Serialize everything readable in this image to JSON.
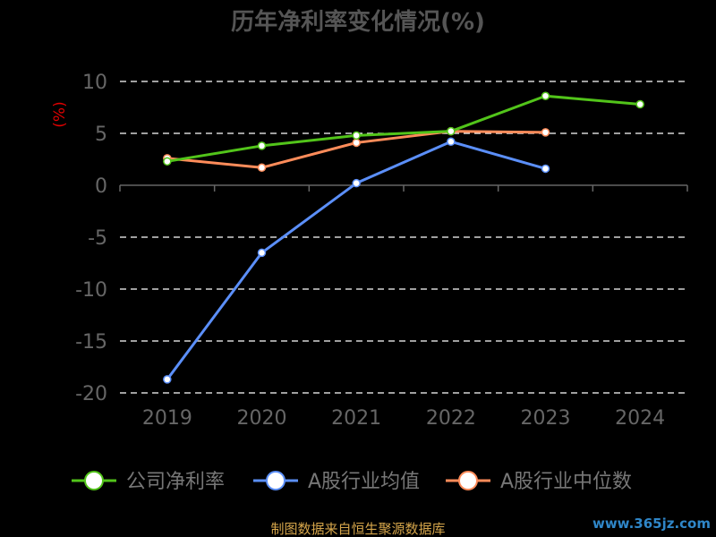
{
  "page": {
    "source_note": "制图数据来自恒生聚源数据库",
    "watermark": "www.365jz.com"
  },
  "colors": {
    "background": "#000000",
    "title": "#555555",
    "ylabel": "#e00000",
    "tick": "#666666",
    "grid": "#ffffff",
    "axis": "#666666",
    "legend_text": "#777777",
    "source": "#d6a64b",
    "watermark": "#2f86c8"
  },
  "chart_data": {
    "type": "line",
    "title": "历年净利率变化情况(%)",
    "ylabel": "(%)",
    "xlabel": "",
    "categories": [
      "2019",
      "2020",
      "2021",
      "2022",
      "2023",
      "2024"
    ],
    "ylim": [
      -20,
      10
    ],
    "yticks": [
      10,
      5,
      0,
      -5,
      -10,
      -15,
      -20
    ],
    "grid": "dashed horizontal",
    "legend_position": "bottom",
    "series": [
      {
        "name": "公司净利率",
        "color": "#52c41a",
        "values": [
          2.3,
          3.8,
          4.8,
          5.2,
          8.6,
          7.8
        ]
      },
      {
        "name": "A股行业均值",
        "color": "#5b8ff9",
        "values": [
          -18.7,
          -6.5,
          0.2,
          4.2,
          1.6,
          null
        ]
      },
      {
        "name": "A股行业中位数",
        "color": "#ff8c5a",
        "values": [
          2.6,
          1.7,
          4.1,
          5.2,
          5.1,
          null
        ]
      }
    ]
  }
}
